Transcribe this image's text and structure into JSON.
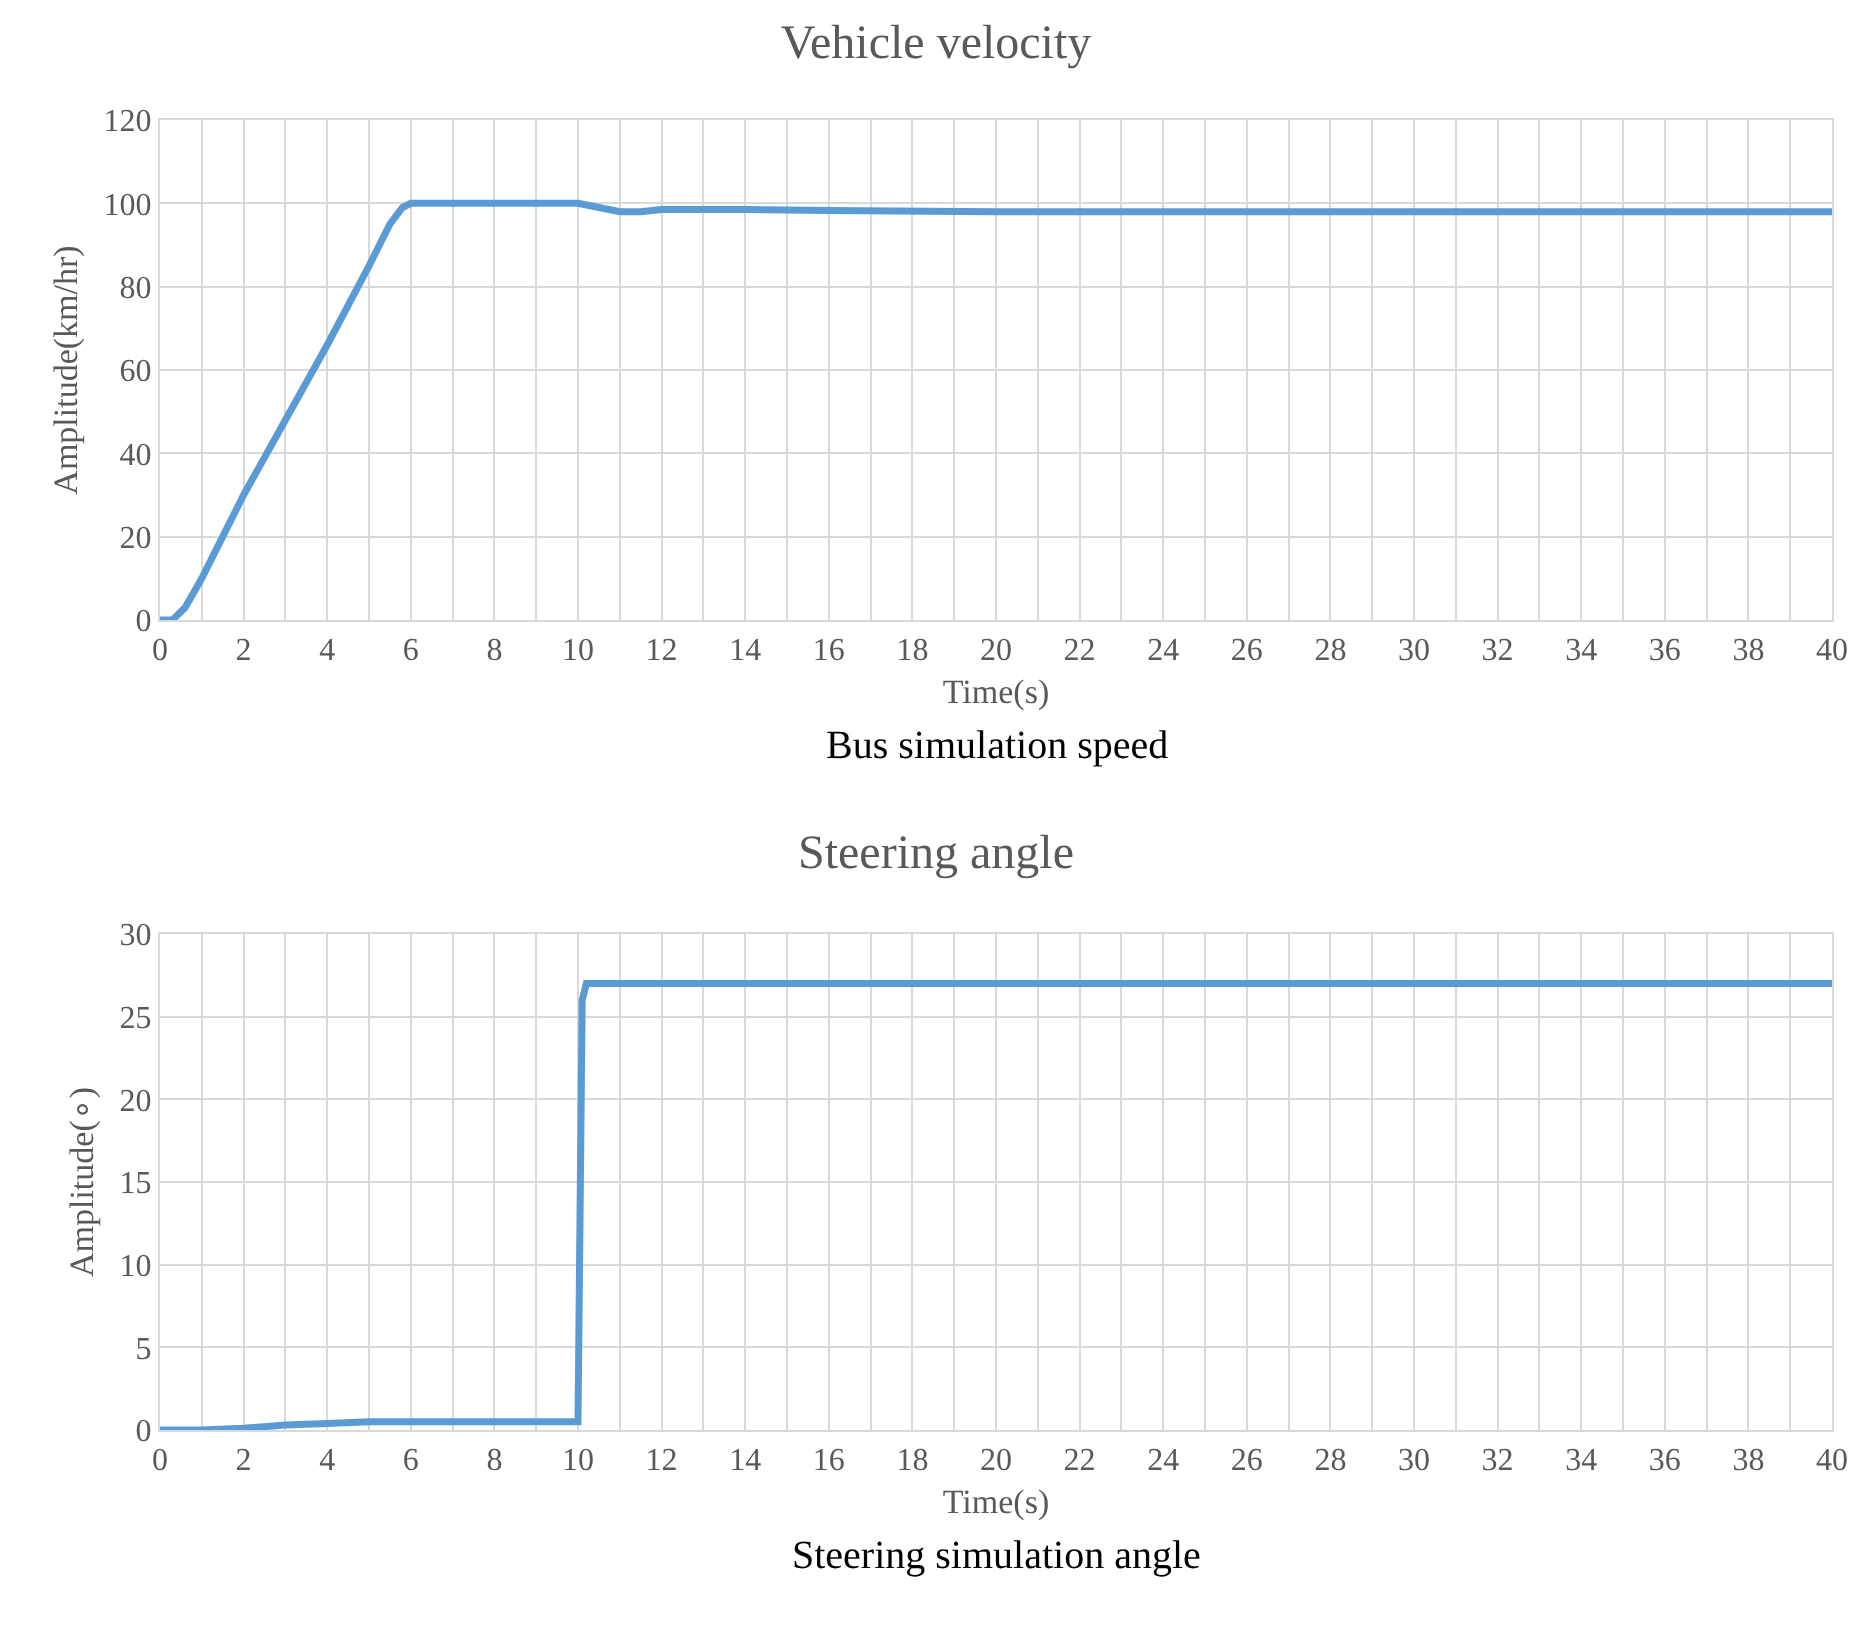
{
  "chart_data": [
    {
      "type": "line",
      "title": "Vehicle velocity",
      "xlabel": "Time(s)",
      "ylabel": "Amplitude(km/hr)",
      "annotations": [
        "Bus simulation speed"
      ],
      "x": [
        0,
        0.3,
        0.6,
        1,
        1.5,
        2,
        3,
        4,
        5,
        5.5,
        5.8,
        6,
        6.5,
        8,
        10,
        10.5,
        11,
        11.5,
        12,
        14,
        16,
        20,
        40
      ],
      "series": [
        {
          "color": "#5b9bd5",
          "values": [
            0,
            0,
            3,
            10,
            20,
            30,
            48,
            66,
            85,
            95,
            99,
            100,
            100,
            100,
            100,
            99,
            98,
            98,
            98.5,
            98.5,
            98.3,
            98,
            98
          ]
        }
      ],
      "xlim": [
        0,
        40
      ],
      "ylim": [
        0,
        120
      ],
      "yticks": [
        0,
        20,
        40,
        60,
        80,
        100,
        120
      ],
      "xticks": [
        0,
        {
          "value": 1,
          "label": null
        },
        2,
        {
          "value": 3,
          "label": null
        },
        4,
        {
          "value": 5,
          "label": null
        },
        6,
        {
          "value": 7,
          "label": null
        },
        8,
        {
          "value": 9,
          "label": null
        },
        10,
        {
          "value": 11,
          "label": null
        },
        12,
        {
          "value": 13,
          "label": null
        },
        14,
        {
          "value": 15,
          "label": null
        },
        16,
        {
          "value": 17,
          "label": null
        },
        18,
        {
          "value": 19,
          "label": null
        },
        20,
        {
          "value": 21,
          "label": null
        },
        22,
        {
          "value": 23,
          "label": null
        },
        24,
        {
          "value": 25,
          "label": null
        },
        26,
        {
          "value": 27,
          "label": null
        },
        28,
        {
          "value": 29,
          "label": null
        },
        30,
        {
          "value": 31,
          "label": null
        },
        32,
        {
          "value": 33,
          "label": null
        },
        34,
        {
          "value": 35,
          "label": null
        },
        36,
        {
          "value": 37,
          "label": null
        },
        38,
        {
          "value": 39,
          "label": null
        },
        40
      ],
      "grid": true,
      "legend": false,
      "marker": "none",
      "line_style": "solid"
    },
    {
      "type": "line",
      "title": "Steering angle",
      "xlabel": "Time(s)",
      "ylabel": "Amplitude(∘)",
      "annotations": [
        "Steering simulation angle"
      ],
      "x": [
        0,
        1,
        2,
        3,
        4,
        5,
        10,
        10.1,
        10.2,
        40
      ],
      "series": [
        {
          "color": "#5b9bd5",
          "values": [
            0,
            0,
            0.1,
            0.3,
            0.4,
            0.5,
            0.5,
            26,
            27,
            27
          ]
        }
      ],
      "xlim": [
        0,
        40
      ],
      "ylim": [
        0,
        30
      ],
      "yticks": [
        0,
        5,
        10,
        15,
        20,
        25,
        30
      ],
      "xticks": [
        0,
        {
          "value": 1,
          "label": null
        },
        2,
        {
          "value": 3,
          "label": null
        },
        4,
        {
          "value": 5,
          "label": null
        },
        6,
        {
          "value": 7,
          "label": null
        },
        8,
        {
          "value": 9,
          "label": null
        },
        10,
        {
          "value": 11,
          "label": null
        },
        12,
        {
          "value": 13,
          "label": null
        },
        14,
        {
          "value": 15,
          "label": null
        },
        16,
        {
          "value": 17,
          "label": null
        },
        18,
        {
          "value": 19,
          "label": null
        },
        20,
        {
          "value": 21,
          "label": null
        },
        22,
        {
          "value": 23,
          "label": null
        },
        24,
        {
          "value": 25,
          "label": null
        },
        26,
        {
          "value": 27,
          "label": null
        },
        28,
        {
          "value": 29,
          "label": null
        },
        30,
        {
          "value": 31,
          "label": null
        },
        32,
        {
          "value": 33,
          "label": null
        },
        34,
        {
          "value": 35,
          "label": null
        },
        36,
        {
          "value": 37,
          "label": null
        },
        38,
        {
          "value": 39,
          "label": null
        },
        40
      ],
      "grid": true,
      "legend": false,
      "marker": "none",
      "line_style": "solid"
    }
  ]
}
